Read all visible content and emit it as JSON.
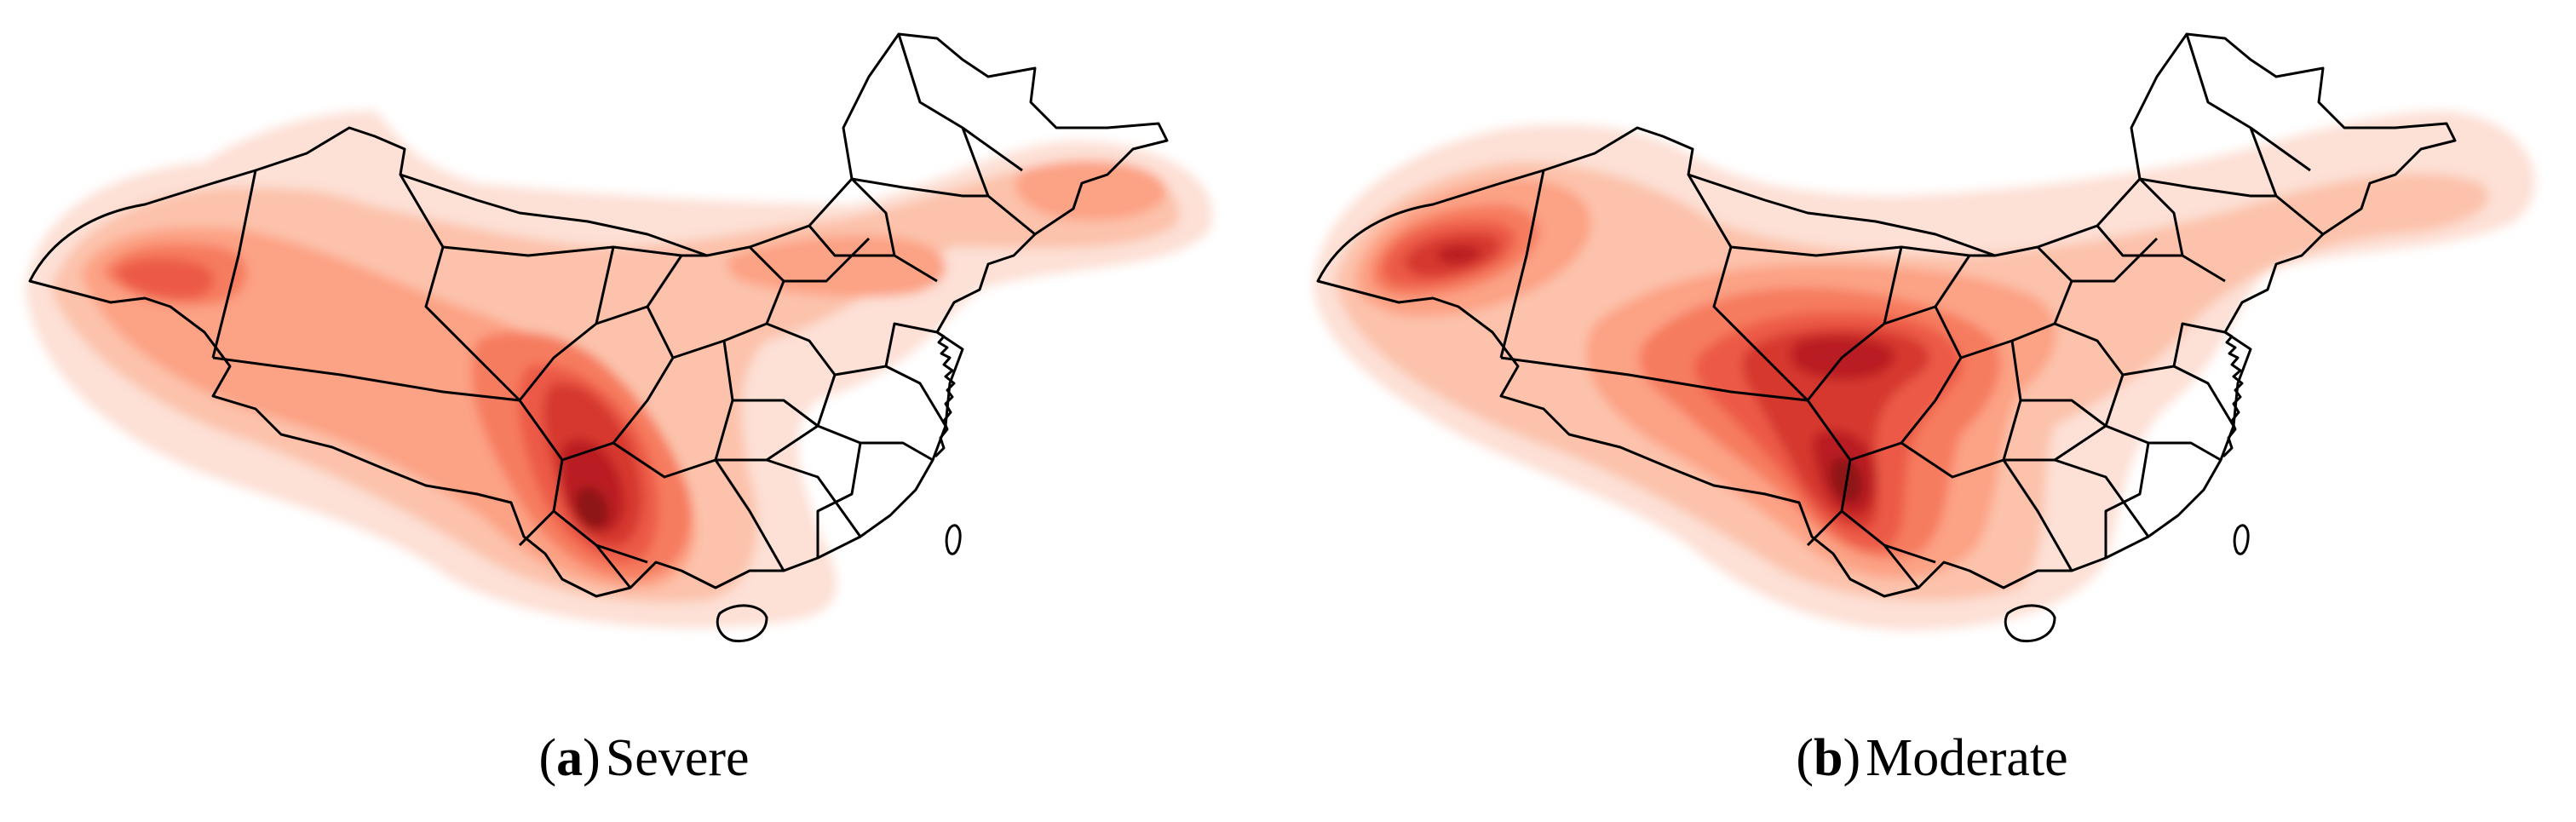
{
  "colors": {
    "level1": "#fde0d6",
    "level2": "#fcc2ab",
    "level3": "#fca285",
    "level4": "#f67c5f",
    "level5": "#ec5a46",
    "level6": "#d6372d",
    "level7": "#b91f22",
    "level8": "#8d1318",
    "border": "#000000",
    "background": "#ffffff"
  },
  "panels": [
    {
      "letter": "a",
      "title": "Severe"
    },
    {
      "letter": "b",
      "title": "Moderate"
    }
  ]
}
